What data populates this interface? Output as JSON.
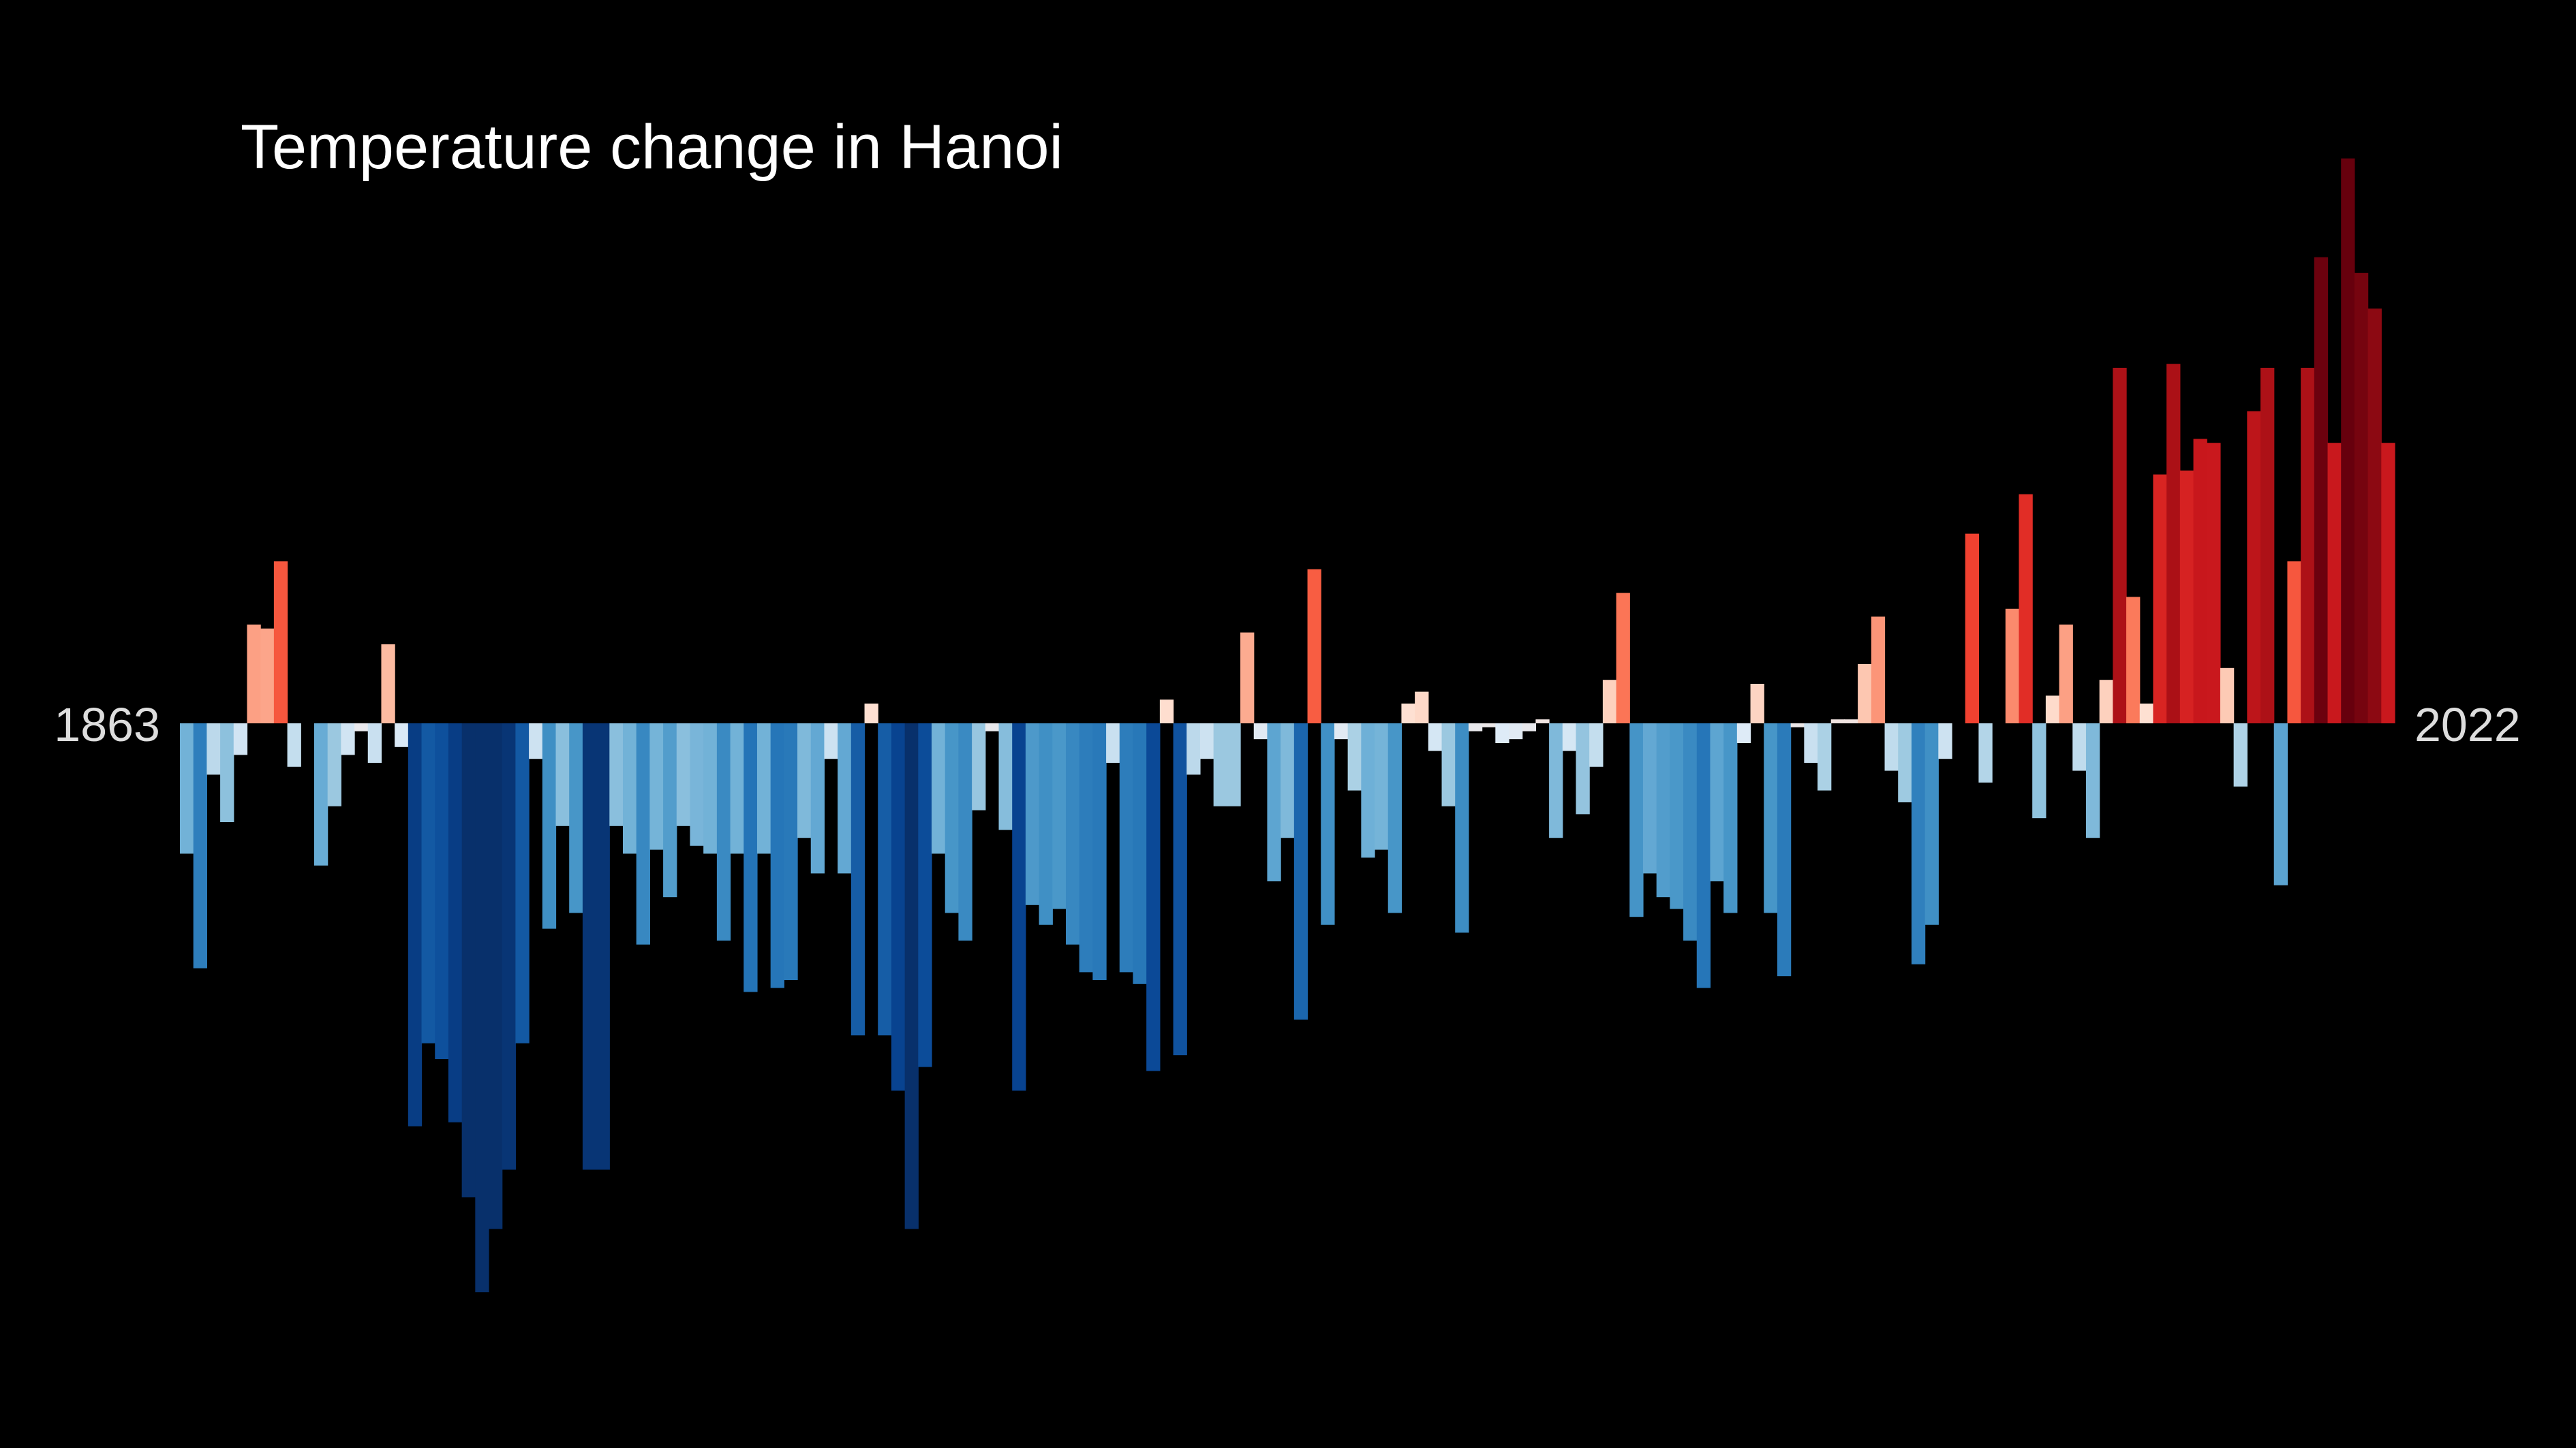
{
  "chart_data": {
    "type": "bar",
    "title": "Temperature change in Hanoi",
    "x_start_label": "1863",
    "x_end_label": "2022",
    "x_first": 1863,
    "x_last": 2022,
    "ylim": [
      -1.45,
      1.45
    ],
    "values": [
      -0.33,
      -0.62,
      -0.13,
      -0.25,
      -0.08,
      0.25,
      0.24,
      0.41,
      -0.11,
      0,
      -0.36,
      -0.21,
      -0.08,
      -0.02,
      -0.1,
      0.2,
      -0.06,
      -1.02,
      -0.81,
      -0.85,
      -1.01,
      -1.2,
      -1.44,
      -1.28,
      -1.13,
      -0.81,
      -0.09,
      -0.52,
      -0.26,
      -0.48,
      -1.13,
      -1.13,
      -0.26,
      -0.33,
      -0.56,
      -0.32,
      -0.44,
      -0.26,
      -0.31,
      -0.33,
      -0.55,
      -0.33,
      -0.68,
      -0.33,
      -0.67,
      -0.65,
      -0.29,
      -0.38,
      -0.09,
      -0.38,
      -0.79,
      0.05,
      -0.79,
      -0.93,
      -1.28,
      -0.87,
      -0.33,
      -0.48,
      -0.55,
      -0.22,
      -0.02,
      -0.27,
      -0.93,
      -0.46,
      -0.51,
      -0.47,
      -0.56,
      -0.63,
      -0.65,
      -0.1,
      -0.63,
      -0.66,
      -0.88,
      0.06,
      -0.84,
      -0.13,
      -0.09,
      -0.21,
      -0.21,
      0.23,
      -0.04,
      -0.4,
      -0.29,
      -0.75,
      0.39,
      -0.51,
      -0.04,
      -0.17,
      -0.34,
      -0.32,
      -0.48,
      0.05,
      0.08,
      -0.07,
      -0.21,
      -0.53,
      -0.02,
      -0.01,
      -0.05,
      -0.04,
      -0.02,
      0.01,
      -0.29,
      -0.07,
      -0.23,
      -0.11,
      0.11,
      0.33,
      -0.49,
      -0.38,
      -0.44,
      -0.47,
      -0.55,
      -0.67,
      -0.4,
      -0.48,
      -0.05,
      0.1,
      -0.48,
      -0.64,
      -0.01,
      -0.1,
      -0.17,
      0.01,
      0.01,
      0.15,
      0.27,
      -0.12,
      -0.2,
      -0.61,
      -0.51,
      -0.09,
      0,
      0.48,
      -0.15,
      0,
      0.29,
      0.58,
      -0.24,
      0.07,
      0.25,
      -0.12,
      -0.29,
      0.11,
      0.9,
      0.32,
      0.05,
      0.63,
      0.91,
      0.64,
      0.72,
      0.71,
      0.14,
      -0.16,
      0.79,
      0.9,
      -0.41,
      0.41,
      0.9,
      1.18,
      0.71,
      1.43,
      1.14,
      1.05,
      0.71
    ]
  }
}
